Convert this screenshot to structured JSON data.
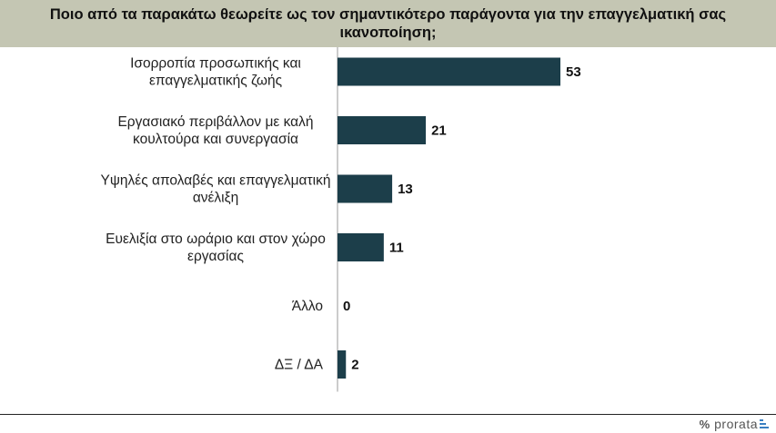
{
  "title": "Ποιο από τα παρακάτω θεωρείτε ως τον σημαντικότερο παράγοντα για την επαγγελματική σας ικανοποίηση;",
  "colors": {
    "title_background": "#c4c6b3",
    "bar": "#1c3e4a",
    "axis": "#999999"
  },
  "brand": {
    "symbol": "%",
    "name": "prorata"
  },
  "chart_data": {
    "type": "bar",
    "orientation": "horizontal",
    "title": "Ποιο από τα παρακάτω θεωρείτε ως τον σημαντικότερο παράγοντα για την επαγγελματική σας ικανοποίηση;",
    "categories": [
      [
        "Ισορροπία προσωπικής και",
        "επαγγελματικής ζωής"
      ],
      [
        "Εργασιακό περιβάλλον με καλή",
        "κουλτούρα και συνεργασία"
      ],
      [
        "Υψηλές απολαβές και επαγγελματική",
        "ανέλιξη"
      ],
      [
        "Ευελιξία στο ωράριο και στον χώρο",
        "εργασίας"
      ],
      [
        "Άλλο"
      ],
      [
        "ΔΞ / ΔΑ"
      ]
    ],
    "values": [
      53,
      21,
      13,
      11,
      0,
      2
    ],
    "data_labels": [
      "53",
      "21",
      "13",
      "11",
      "0",
      "2"
    ],
    "xlim": [
      0,
      53
    ],
    "grid": false,
    "legend": "none"
  }
}
